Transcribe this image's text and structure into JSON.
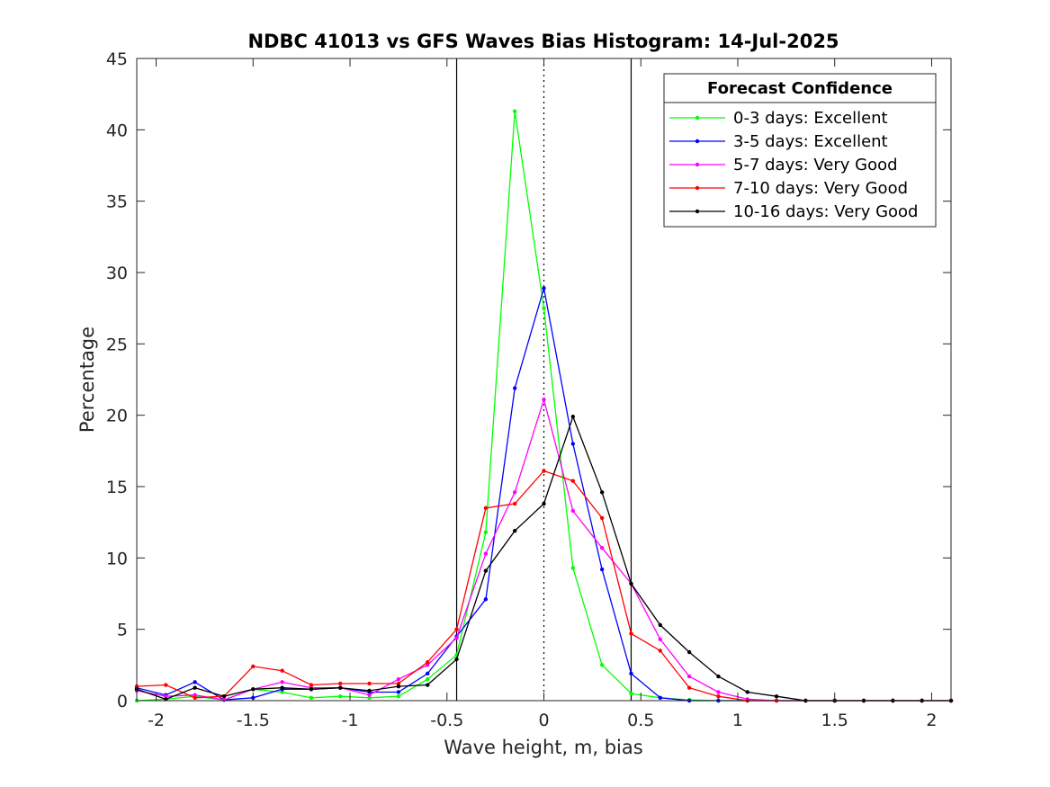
{
  "chart_data": {
    "type": "line",
    "title": "NDBC 41013 vs GFS Waves Bias Histogram: 14-Jul-2025",
    "xlabel": "Wave height, m, bias",
    "ylabel": "Percentage",
    "xlim": [
      -2.1,
      2.1
    ],
    "ylim": [
      0,
      45
    ],
    "xticks": [
      -2,
      -1.5,
      -1,
      -0.5,
      0,
      0.5,
      1,
      1.5,
      2
    ],
    "xtick_labels": [
      "-2",
      "-1.5",
      "-1",
      "-0.5",
      "0",
      "0.5",
      "1",
      "1.5",
      "2"
    ],
    "yticks": [
      0,
      5,
      10,
      15,
      20,
      25,
      30,
      35,
      40,
      45
    ],
    "ytick_labels": [
      "0",
      "5",
      "10",
      "15",
      "20",
      "25",
      "30",
      "35",
      "40",
      "45"
    ],
    "grid": false,
    "legend": {
      "title": "Forecast Confidence",
      "position": "top-right"
    },
    "reference_lines": {
      "solid": [
        -0.45,
        0.45
      ],
      "dotted": [
        0
      ]
    },
    "x": [
      -2.1,
      -1.95,
      -1.8,
      -1.65,
      -1.5,
      -1.35,
      -1.2,
      -1.05,
      -0.9,
      -0.75,
      -0.6,
      -0.45,
      -0.3,
      -0.15,
      0,
      0.15,
      0.3,
      0.45,
      0.6,
      0.75,
      0.9,
      1.05,
      1.2,
      1.35,
      1.5,
      1.65,
      1.8,
      1.95,
      2.1
    ],
    "series": [
      {
        "name": "0-3 days: Excellent",
        "color": "#00ff00",
        "values": [
          0,
          0.1,
          0.3,
          0.05,
          0.8,
          0.6,
          0.2,
          0.3,
          0.2,
          0.3,
          1.5,
          3.2,
          11.8,
          41.3,
          27.5,
          9.3,
          2.5,
          0.5,
          0.2,
          0.05,
          0,
          0,
          0,
          0,
          0,
          0,
          0,
          0,
          0
        ]
      },
      {
        "name": "3-5 days: Excellent",
        "color": "#0000ff",
        "values": [
          0.9,
          0.4,
          1.3,
          0.05,
          0.2,
          0.8,
          0.8,
          0.9,
          0.6,
          0.6,
          1.9,
          4.5,
          7.1,
          21.9,
          28.9,
          18,
          9.2,
          1.9,
          0.2,
          0,
          0,
          0,
          0,
          0,
          0,
          0,
          0,
          0,
          0
        ]
      },
      {
        "name": "5-7 days: Very Good",
        "color": "#ff00ff",
        "values": [
          0.7,
          0.3,
          0.4,
          0.05,
          0.8,
          1.3,
          0.9,
          0.9,
          0.4,
          1.5,
          2.5,
          4.4,
          10.3,
          14.6,
          21.1,
          13.3,
          10.7,
          8.2,
          4.3,
          1.7,
          0.6,
          0.1,
          0,
          0,
          0,
          0,
          0,
          0,
          0
        ]
      },
      {
        "name": "7-10 days: Very Good",
        "color": "#ff0000",
        "values": [
          1,
          1.1,
          0.2,
          0.3,
          2.4,
          2.1,
          1.1,
          1.2,
          1.2,
          1.2,
          2.7,
          5,
          13.5,
          13.8,
          16.1,
          15.4,
          12.8,
          4.7,
          3.5,
          0.9,
          0.3,
          0,
          0,
          0,
          0,
          0,
          0,
          0,
          0
        ]
      },
      {
        "name": "10-16 days: Very Good",
        "color": "#000000",
        "values": [
          0.8,
          0.1,
          0.9,
          0.3,
          0.8,
          0.9,
          0.8,
          0.9,
          0.7,
          1,
          1.1,
          2.9,
          9.1,
          11.9,
          13.8,
          19.9,
          14.6,
          8.2,
          5.3,
          3.4,
          1.7,
          0.6,
          0.3,
          0,
          0,
          0,
          0,
          0,
          0
        ]
      }
    ]
  }
}
